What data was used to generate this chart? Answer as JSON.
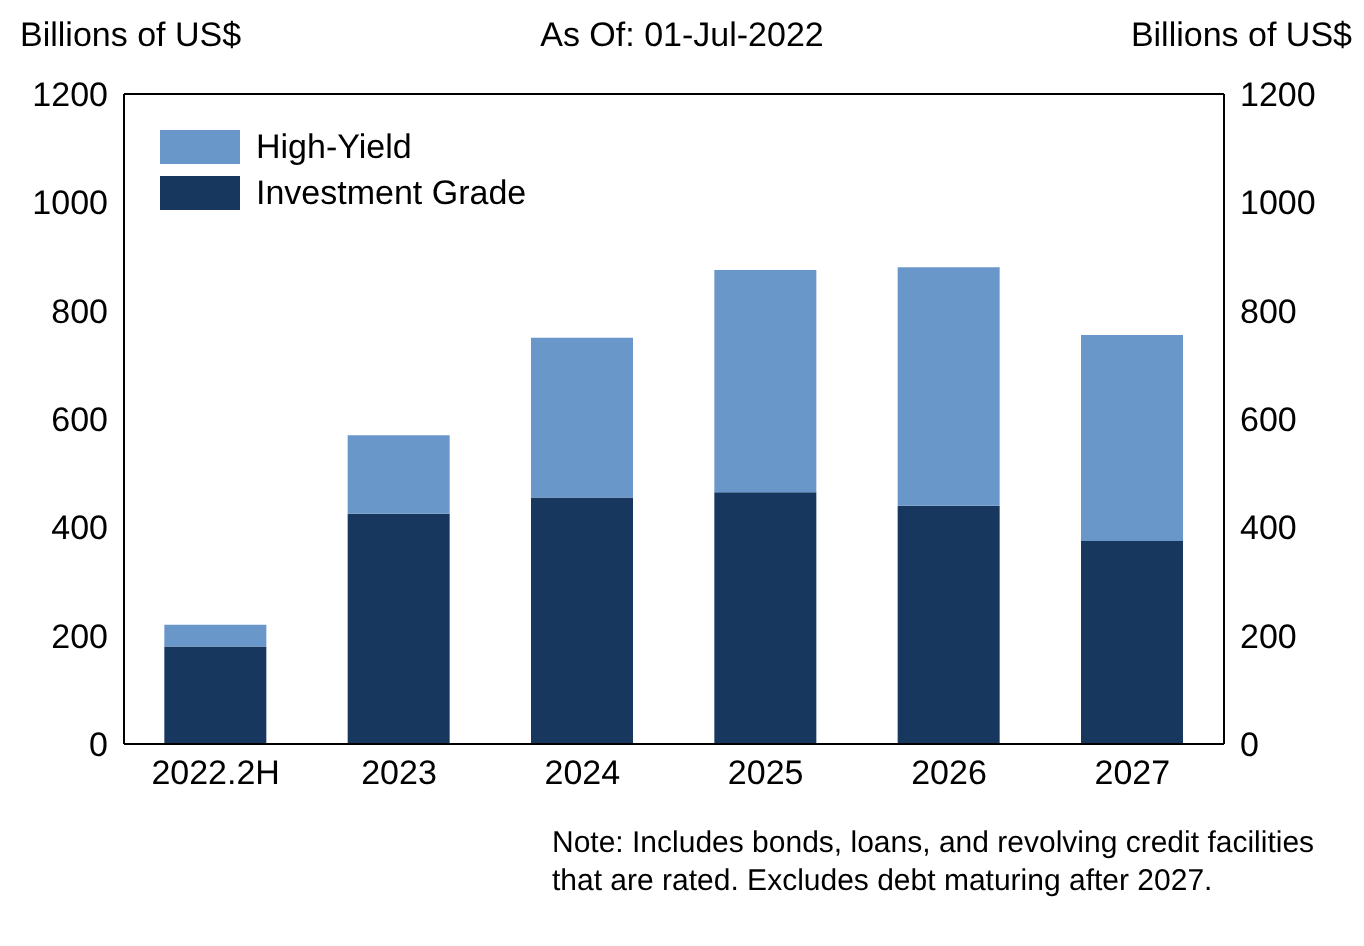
{
  "chart_data": {
    "type": "bar",
    "title": "As Of: 01-Jul-2022",
    "ylabel": "Billions of US$",
    "y2label": "Billions of US$",
    "categories": [
      "2022.2H",
      "2023",
      "2024",
      "2025",
      "2026",
      "2027"
    ],
    "stacked": true,
    "series": [
      {
        "name": "Investment Grade",
        "color": "#17375e",
        "values": [
          180,
          425,
          455,
          465,
          440,
          375
        ]
      },
      {
        "name": "High-Yield",
        "color": "#6a97c9",
        "values": [
          40,
          145,
          295,
          410,
          440,
          380
        ]
      }
    ],
    "ylim": [
      0,
      1200
    ],
    "yticks": [
      0,
      200,
      400,
      600,
      800,
      1000,
      1200
    ],
    "y2lim": [
      0,
      1200
    ],
    "y2ticks": [
      0,
      200,
      400,
      600,
      800,
      1000,
      1200
    ],
    "grid": false,
    "legend": "top left",
    "annotations": [
      "Note: Includes bonds, loans, and revolving credit facilities that are rated. Excludes debt maturing after 2027."
    ]
  }
}
